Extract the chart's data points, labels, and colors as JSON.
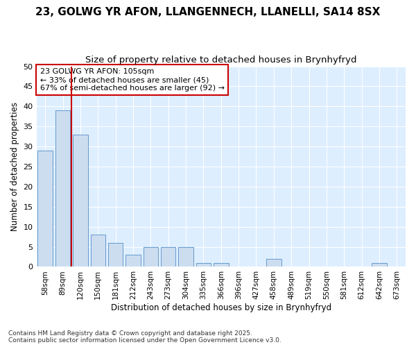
{
  "title_line1": "23, GOLWG YR AFON, LLANGENNECH, LLANELLI, SA14 8SX",
  "title_line2": "Size of property relative to detached houses in Brynhyfryd",
  "xlabel": "Distribution of detached houses by size in Brynhyfryd",
  "ylabel": "Number of detached properties",
  "categories": [
    "58sqm",
    "89sqm",
    "120sqm",
    "150sqm",
    "181sqm",
    "212sqm",
    "243sqm",
    "273sqm",
    "304sqm",
    "335sqm",
    "366sqm",
    "396sqm",
    "427sqm",
    "458sqm",
    "489sqm",
    "519sqm",
    "550sqm",
    "581sqm",
    "612sqm",
    "642sqm",
    "673sqm"
  ],
  "values": [
    29,
    39,
    33,
    8,
    6,
    3,
    5,
    5,
    5,
    1,
    1,
    0,
    0,
    2,
    0,
    0,
    0,
    0,
    0,
    1,
    0
  ],
  "bar_color": "#ccddf0",
  "bar_edge_color": "#6699cc",
  "vline_color": "#cc0000",
  "vline_index": 1.5,
  "annotation_text": "23 GOLWG YR AFON: 105sqm\n← 33% of detached houses are smaller (45)\n67% of semi-detached houses are larger (92) →",
  "annotation_box_facecolor": "#ffffff",
  "annotation_box_edgecolor": "#cc0000",
  "ylim": [
    0,
    50
  ],
  "yticks": [
    0,
    5,
    10,
    15,
    20,
    25,
    30,
    35,
    40,
    45,
    50
  ],
  "fig_bg_color": "#ffffff",
  "plot_bg_color": "#ddeeff",
  "grid_color": "#ffffff",
  "footer_text": "Contains HM Land Registry data © Crown copyright and database right 2025.\nContains public sector information licensed under the Open Government Licence v3.0."
}
